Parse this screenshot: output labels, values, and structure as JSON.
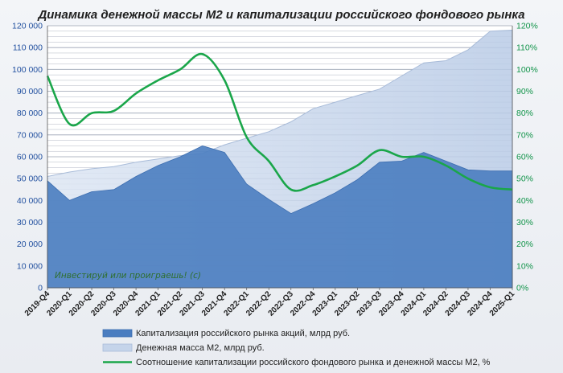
{
  "chart_data": {
    "type": "area",
    "title": "Динамика денежной массы М2 и капитализации российского фондового рынка",
    "categories": [
      "2019-Q4",
      "2020-Q1",
      "2020-Q2",
      "2020-Q3",
      "2020-Q4",
      "2021-Q1",
      "2021-Q2",
      "2021-Q3",
      "2021-Q4",
      "2022-Q1",
      "2022-Q2",
      "2022-Q3",
      "2022-Q4",
      "2023-Q1",
      "2023-Q2",
      "2023-Q3",
      "2023-Q4",
      "2024-Q1",
      "2024-Q2",
      "2024-Q3",
      "2024-Q4",
      "2025-Q1"
    ],
    "series": [
      {
        "name": "Капитализация российского рынка акций, млрд руб.",
        "axis": "left",
        "type": "area",
        "color": "#4a7dc0",
        "values": [
          49000,
          40000,
          44000,
          45000,
          51000,
          56000,
          60000,
          65000,
          62000,
          47500,
          40500,
          34000,
          38500,
          43500,
          49500,
          57500,
          58000,
          62000,
          58000,
          54000,
          53500,
          53500
        ]
      },
      {
        "name": "Денежная масса М2, млрд руб.",
        "axis": "left",
        "type": "area",
        "color": "#c5d4ea",
        "values": [
          51000,
          53000,
          54500,
          55500,
          57500,
          59000,
          60500,
          61500,
          65500,
          68500,
          71500,
          76000,
          82000,
          85000,
          88000,
          91000,
          97000,
          103000,
          104000,
          109000,
          117500,
          118000
        ]
      },
      {
        "name": "Соотношение  капитализации российского фондового рынка и денежной массы М2, %",
        "axis": "right",
        "type": "line",
        "color": "#1aa64a",
        "values": [
          97,
          75,
          80,
          81,
          89,
          95,
          100,
          107,
          95,
          69,
          58,
          45,
          47,
          51,
          56,
          63,
          60,
          60,
          56,
          50,
          46,
          45
        ]
      }
    ],
    "y_left": {
      "min": 0,
      "max": 120000,
      "step": 10000
    },
    "y_right": {
      "min": 0,
      "max": 120,
      "step": 10,
      "unit": "%"
    },
    "grid": true,
    "legend_position": "bottom",
    "annotation": "Инвестируй или проиграешь! (с)"
  },
  "colors": {
    "left_axis": "#1f4e9e",
    "right_axis": "#12944a",
    "grid": "#8f98aa"
  }
}
